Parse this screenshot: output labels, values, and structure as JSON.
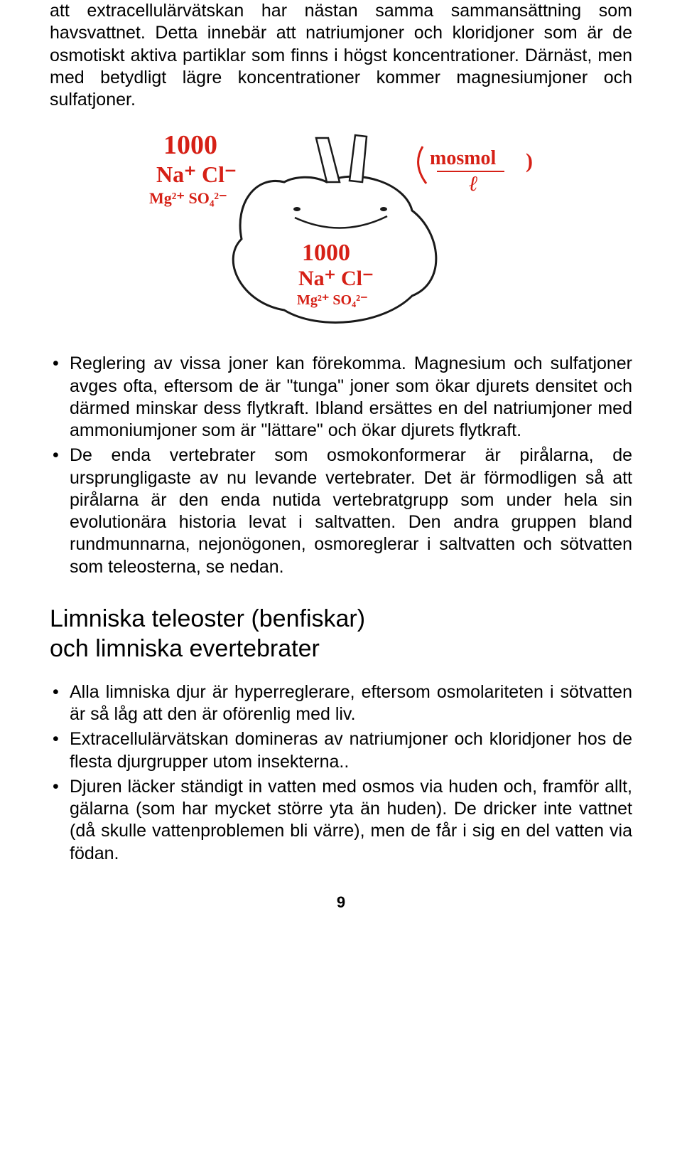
{
  "intro_paragraph": "att extracellulärvätskan har nästan samma sammansättning som havsvattnet. Detta innebär att natriumjoner och kloridjoner som är de osmotiskt aktiva partiklar som finns i högst koncentrationer. Därnäst, men med betydligt lägre koncentrationer kommer magnesiumjoner och sulfatjoner.",
  "illustration": {
    "labels": {
      "outside_value": "1000",
      "outside_ions_1": "Na⁺ Cl⁻",
      "outside_ions_2": "Mg²⁺ SO₄²⁻",
      "inside_value": "1000",
      "inside_ions_1": "Na⁺ Cl⁻",
      "inside_ions_2": "Mg²⁺ SO₄²⁻",
      "unit": "(mosmol/ℓ)"
    },
    "colors": {
      "ink": "#d62016",
      "outline": "#1a1a1a",
      "background": "#ffffff"
    }
  },
  "bullets_1": [
    "Reglering av vissa joner kan förekomma. Magnesium och sulfatjoner avges ofta, eftersom de är \"tunga\" joner som ökar djurets densitet och därmed minskar dess flytkraft. Ibland ersättes en del natriumjoner med ammoniumjoner som är \"lättare\" och ökar djurets flytkraft.",
    "De enda vertebrater som osmokonformerar är pirålarna, de ursprungligaste av nu levande vertebrater. Det är förmodligen så att pirålarna är den enda nutida vertebratgrupp som under hela sin evolutionära historia levat i saltvatten. Den andra gruppen bland rundmunnarna, nejonögonen, osmoreglerar i saltvatten och sötvatten som teleosterna, se nedan."
  ],
  "heading": "Limniska teleoster (benfiskar)\noch limniska evertebrater",
  "bullets_2": [
    "Alla limniska djur är hyperreglerare, eftersom osmolariteten i sötvatten är så låg att den är oförenlig med liv.",
    "Extracellulärvätskan domineras av natriumjoner och kloridjoner hos de flesta djurgrupper utom insekterna..",
    "Djuren läcker ständigt in vatten med osmos via huden och, framför allt, gälarna (som har mycket större yta än huden). De dricker inte vattnet (då skulle vattenproblemen bli värre), men de får i sig en del vatten via födan."
  ],
  "page_number": "9"
}
